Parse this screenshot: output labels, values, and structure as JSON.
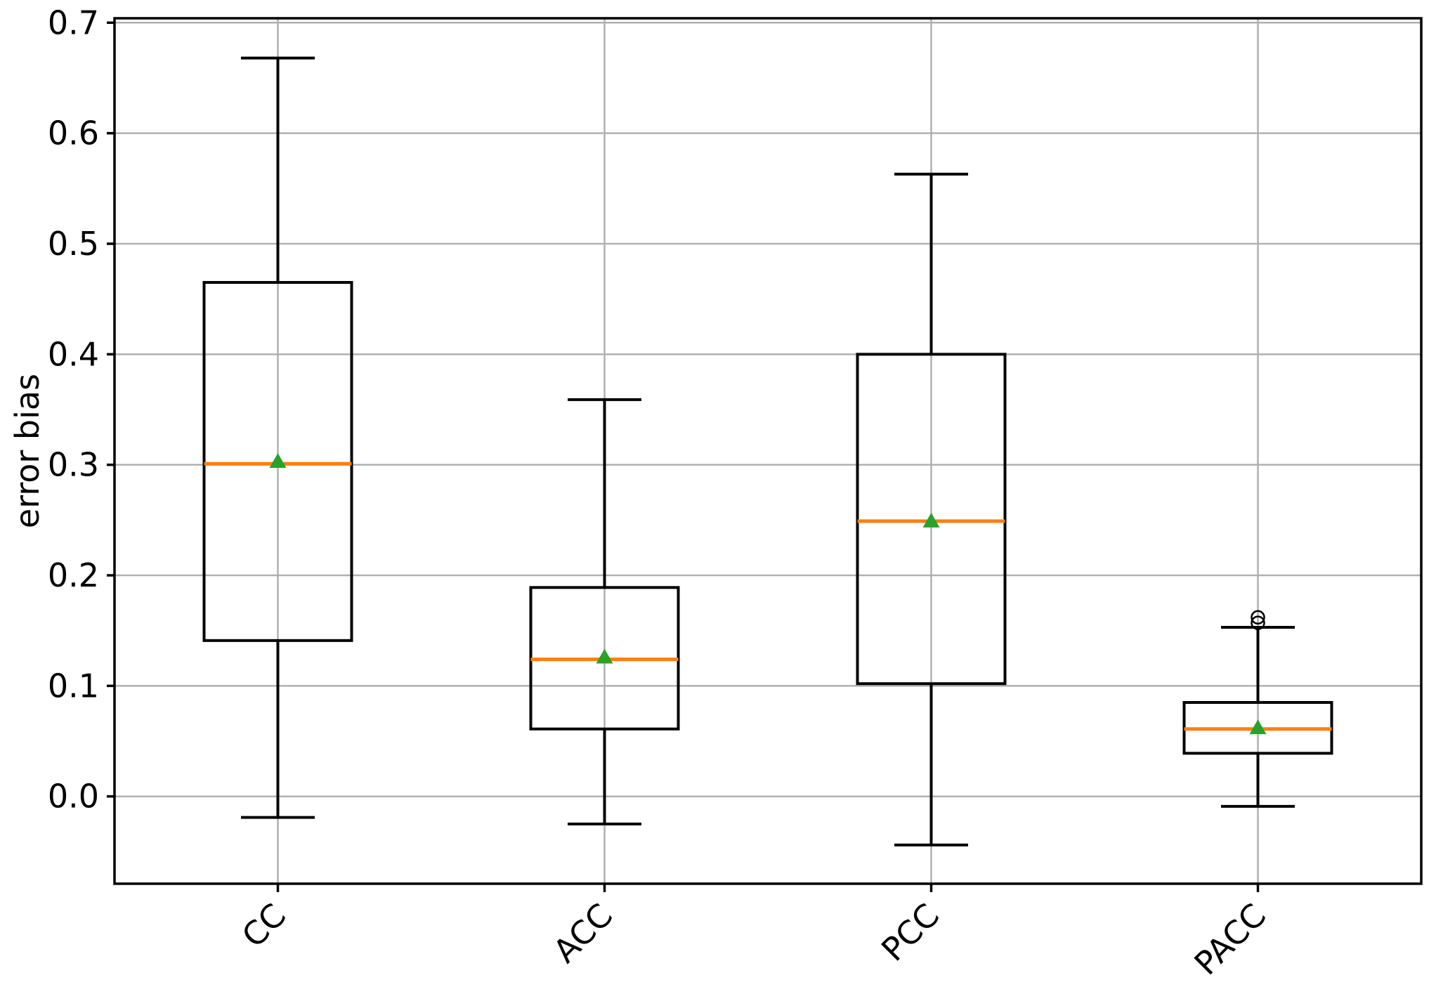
{
  "chart_data": {
    "type": "box",
    "title": "",
    "xlabel": "",
    "ylabel": "error bias",
    "categories": [
      "CC",
      "ACC",
      "PCC",
      "PACC"
    ],
    "ylim": [
      -0.079,
      0.704
    ],
    "yticks": [
      0.0,
      0.1,
      0.2,
      0.3,
      0.4,
      0.5,
      0.6,
      0.7
    ],
    "ytick_labels": [
      "0.0",
      "0.1",
      "0.2",
      "0.3",
      "0.4",
      "0.5",
      "0.6",
      "0.7"
    ],
    "grid": true,
    "legend": "none",
    "colors": {
      "box": "#000000",
      "whisker": "#000000",
      "median": "#ff7f0e",
      "mean_marker": "#2ca02c",
      "flier": "#000000",
      "grid": "#b0b0b0",
      "spine": "#000000",
      "background": "#ffffff"
    },
    "marker_shapes": {
      "mean": "triangle-up",
      "flier": "open-circle"
    },
    "series": [
      {
        "name": "CC",
        "whislo": -0.019,
        "q1": 0.141,
        "med": 0.301,
        "mean": 0.303,
        "q3": 0.465,
        "whishi": 0.668,
        "fliers": []
      },
      {
        "name": "ACC",
        "whislo": -0.025,
        "q1": 0.061,
        "med": 0.124,
        "mean": 0.126,
        "q3": 0.189,
        "whishi": 0.359,
        "fliers": []
      },
      {
        "name": "PCC",
        "whislo": -0.044,
        "q1": 0.102,
        "med": 0.249,
        "mean": 0.249,
        "q3": 0.4,
        "whishi": 0.563,
        "fliers": []
      },
      {
        "name": "PACC",
        "whislo": -0.009,
        "q1": 0.039,
        "med": 0.061,
        "mean": 0.062,
        "q3": 0.085,
        "whishi": 0.153,
        "fliers": [
          0.157,
          0.162
        ]
      }
    ]
  }
}
